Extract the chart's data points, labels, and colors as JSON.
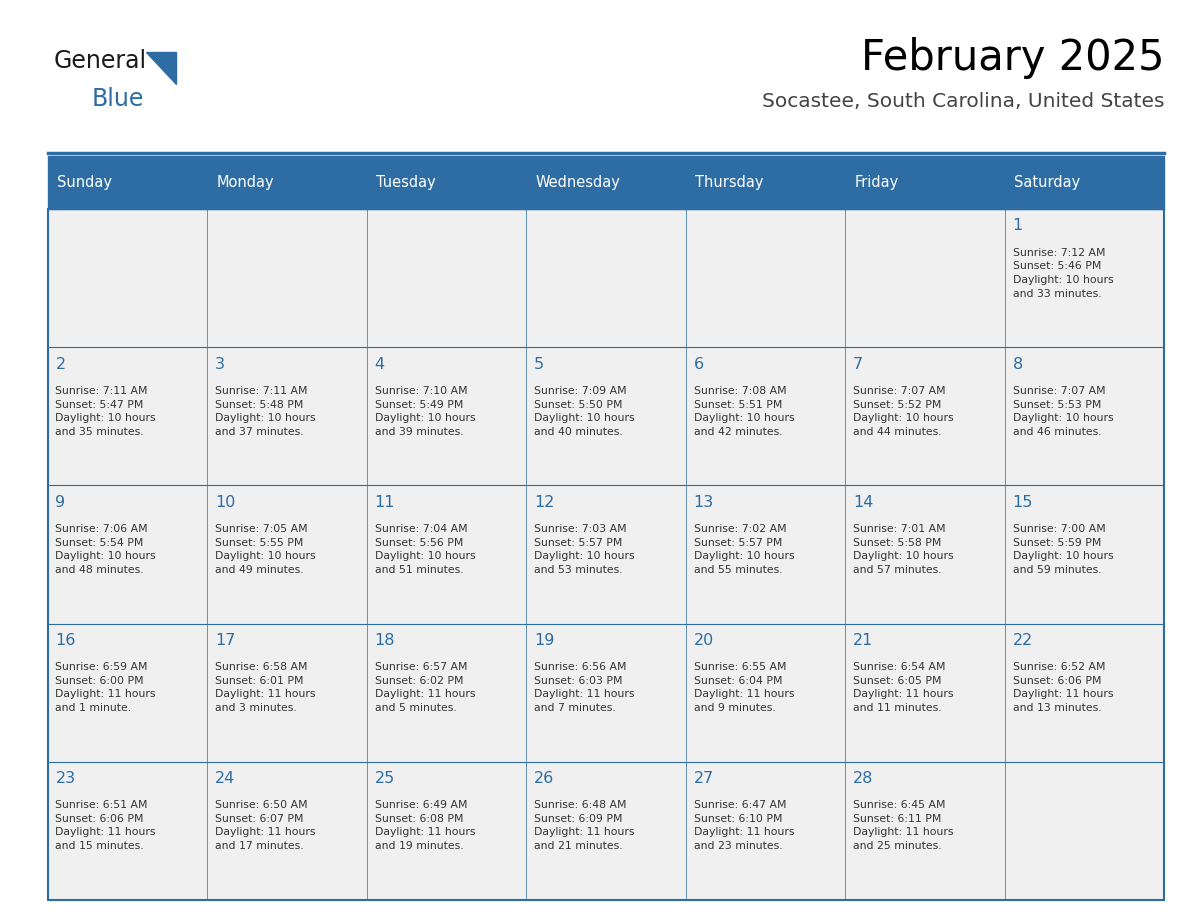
{
  "title": "February 2025",
  "subtitle": "Socastee, South Carolina, United States",
  "header_bg": "#2e6da4",
  "header_text_color": "#ffffff",
  "cell_bg_light": "#f0f0f0",
  "day_number_color": "#2e6da4",
  "info_text_color": "#333333",
  "border_color": "#2e6da4",
  "days_of_week": [
    "Sunday",
    "Monday",
    "Tuesday",
    "Wednesday",
    "Thursday",
    "Friday",
    "Saturday"
  ],
  "weeks": [
    [
      {
        "day": "",
        "info": ""
      },
      {
        "day": "",
        "info": ""
      },
      {
        "day": "",
        "info": ""
      },
      {
        "day": "",
        "info": ""
      },
      {
        "day": "",
        "info": ""
      },
      {
        "day": "",
        "info": ""
      },
      {
        "day": "1",
        "info": "Sunrise: 7:12 AM\nSunset: 5:46 PM\nDaylight: 10 hours\nand 33 minutes."
      }
    ],
    [
      {
        "day": "2",
        "info": "Sunrise: 7:11 AM\nSunset: 5:47 PM\nDaylight: 10 hours\nand 35 minutes."
      },
      {
        "day": "3",
        "info": "Sunrise: 7:11 AM\nSunset: 5:48 PM\nDaylight: 10 hours\nand 37 minutes."
      },
      {
        "day": "4",
        "info": "Sunrise: 7:10 AM\nSunset: 5:49 PM\nDaylight: 10 hours\nand 39 minutes."
      },
      {
        "day": "5",
        "info": "Sunrise: 7:09 AM\nSunset: 5:50 PM\nDaylight: 10 hours\nand 40 minutes."
      },
      {
        "day": "6",
        "info": "Sunrise: 7:08 AM\nSunset: 5:51 PM\nDaylight: 10 hours\nand 42 minutes."
      },
      {
        "day": "7",
        "info": "Sunrise: 7:07 AM\nSunset: 5:52 PM\nDaylight: 10 hours\nand 44 minutes."
      },
      {
        "day": "8",
        "info": "Sunrise: 7:07 AM\nSunset: 5:53 PM\nDaylight: 10 hours\nand 46 minutes."
      }
    ],
    [
      {
        "day": "9",
        "info": "Sunrise: 7:06 AM\nSunset: 5:54 PM\nDaylight: 10 hours\nand 48 minutes."
      },
      {
        "day": "10",
        "info": "Sunrise: 7:05 AM\nSunset: 5:55 PM\nDaylight: 10 hours\nand 49 minutes."
      },
      {
        "day": "11",
        "info": "Sunrise: 7:04 AM\nSunset: 5:56 PM\nDaylight: 10 hours\nand 51 minutes."
      },
      {
        "day": "12",
        "info": "Sunrise: 7:03 AM\nSunset: 5:57 PM\nDaylight: 10 hours\nand 53 minutes."
      },
      {
        "day": "13",
        "info": "Sunrise: 7:02 AM\nSunset: 5:57 PM\nDaylight: 10 hours\nand 55 minutes."
      },
      {
        "day": "14",
        "info": "Sunrise: 7:01 AM\nSunset: 5:58 PM\nDaylight: 10 hours\nand 57 minutes."
      },
      {
        "day": "15",
        "info": "Sunrise: 7:00 AM\nSunset: 5:59 PM\nDaylight: 10 hours\nand 59 minutes."
      }
    ],
    [
      {
        "day": "16",
        "info": "Sunrise: 6:59 AM\nSunset: 6:00 PM\nDaylight: 11 hours\nand 1 minute."
      },
      {
        "day": "17",
        "info": "Sunrise: 6:58 AM\nSunset: 6:01 PM\nDaylight: 11 hours\nand 3 minutes."
      },
      {
        "day": "18",
        "info": "Sunrise: 6:57 AM\nSunset: 6:02 PM\nDaylight: 11 hours\nand 5 minutes."
      },
      {
        "day": "19",
        "info": "Sunrise: 6:56 AM\nSunset: 6:03 PM\nDaylight: 11 hours\nand 7 minutes."
      },
      {
        "day": "20",
        "info": "Sunrise: 6:55 AM\nSunset: 6:04 PM\nDaylight: 11 hours\nand 9 minutes."
      },
      {
        "day": "21",
        "info": "Sunrise: 6:54 AM\nSunset: 6:05 PM\nDaylight: 11 hours\nand 11 minutes."
      },
      {
        "day": "22",
        "info": "Sunrise: 6:52 AM\nSunset: 6:06 PM\nDaylight: 11 hours\nand 13 minutes."
      }
    ],
    [
      {
        "day": "23",
        "info": "Sunrise: 6:51 AM\nSunset: 6:06 PM\nDaylight: 11 hours\nand 15 minutes."
      },
      {
        "day": "24",
        "info": "Sunrise: 6:50 AM\nSunset: 6:07 PM\nDaylight: 11 hours\nand 17 minutes."
      },
      {
        "day": "25",
        "info": "Sunrise: 6:49 AM\nSunset: 6:08 PM\nDaylight: 11 hours\nand 19 minutes."
      },
      {
        "day": "26",
        "info": "Sunrise: 6:48 AM\nSunset: 6:09 PM\nDaylight: 11 hours\nand 21 minutes."
      },
      {
        "day": "27",
        "info": "Sunrise: 6:47 AM\nSunset: 6:10 PM\nDaylight: 11 hours\nand 23 minutes."
      },
      {
        "day": "28",
        "info": "Sunrise: 6:45 AM\nSunset: 6:11 PM\nDaylight: 11 hours\nand 25 minutes."
      },
      {
        "day": "",
        "info": ""
      }
    ]
  ],
  "logo_text_general": "General",
  "logo_text_blue": "Blue",
  "logo_color_general": "#1a1a1a",
  "logo_color_blue": "#2e6da4",
  "logo_triangle_color": "#2e6da4"
}
